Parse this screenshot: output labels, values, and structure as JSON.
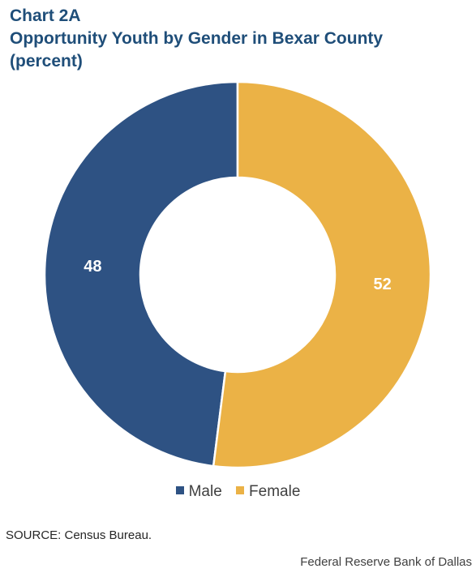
{
  "title": {
    "line1": "Chart 2A",
    "line2": "Opportunity Youth by Gender in Bexar County",
    "line3": "(percent)"
  },
  "chart_data": {
    "type": "pie",
    "variant": "donut",
    "categories": [
      "Male",
      "Female"
    ],
    "values": [
      48,
      52
    ],
    "labels": [
      "48",
      "52"
    ],
    "colors": [
      "#2e5283",
      "#ebb246"
    ],
    "legend_position": "bottom"
  },
  "legend": {
    "items": [
      {
        "label": "Male",
        "color": "#2e5283"
      },
      {
        "label": "Female",
        "color": "#ebb246"
      }
    ]
  },
  "source": "SOURCE:  Census Bureau.",
  "credit": "Federal Reserve Bank of Dallas"
}
